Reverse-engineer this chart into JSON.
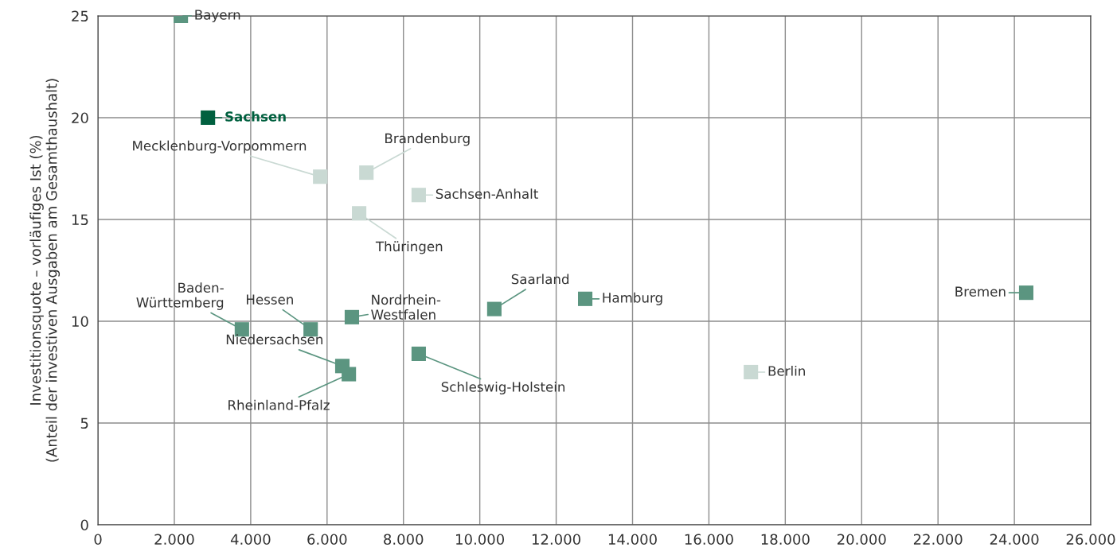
{
  "chart_data": {
    "type": "scatter",
    "ylabel": "Investitionsquote – vorläufiges Ist (%)\n(Anteil der investiven Ausgaben am Gesamthaushalt)",
    "x": [
      2170,
      2880,
      5820,
      7030,
      8400,
      6840,
      3770,
      5570,
      6650,
      6400,
      6570,
      8400,
      10380,
      12760,
      24310,
      17100
    ],
    "values": [
      25.0,
      20.0,
      17.1,
      17.3,
      16.2,
      15.3,
      9.6,
      9.6,
      10.2,
      7.8,
      7.4,
      8.4,
      10.6,
      11.1,
      11.4,
      7.5
    ],
    "colors": [
      "#5b9580",
      "#00603f",
      "#c9d9d3",
      "#c9d9d3",
      "#c9d9d3",
      "#c9d9d3",
      "#5b9580",
      "#5b9580",
      "#5b9580",
      "#5b9580",
      "#5b9580",
      "#5b9580",
      "#5b9580",
      "#5b9580",
      "#5b9580",
      "#c9d9d3"
    ],
    "marker": "square",
    "annotations": [
      {
        "text": "Bayern",
        "x": 2170,
        "y": 25.0
      },
      {
        "text": "Sachsen",
        "x": 2880,
        "y": 20.0
      },
      {
        "text": "Mecklenburg-Vorpommern",
        "x": 5820,
        "y": 17.1
      },
      {
        "text": "Brandenburg",
        "x": 7030,
        "y": 17.3
      },
      {
        "text": "Sachsen-Anhalt",
        "x": 8400,
        "y": 16.2
      },
      {
        "text": "Thüringen",
        "x": 6840,
        "y": 15.3
      },
      {
        "text": "Baden-\nWürttemberg",
        "x": 3770,
        "y": 9.6
      },
      {
        "text": "Hessen",
        "x": 5570,
        "y": 9.6
      },
      {
        "text": "Nordrhein-\nWestfalen",
        "x": 6650,
        "y": 10.2
      },
      {
        "text": "Niedersachsen",
        "x": 6400,
        "y": 7.8
      },
      {
        "text": "Rheinland-Pfalz",
        "x": 6570,
        "y": 7.4
      },
      {
        "text": "Schleswig-Holstein",
        "x": 8400,
        "y": 8.4
      },
      {
        "text": "Saarland",
        "x": 10380,
        "y": 10.6
      },
      {
        "text": "Hamburg",
        "x": 12760,
        "y": 11.1
      },
      {
        "text": "Bremen",
        "x": 24310,
        "y": 11.4
      },
      {
        "text": "Berlin",
        "x": 17100,
        "y": 7.5
      }
    ],
    "xlim": [
      0,
      26000
    ],
    "ylim": [
      0,
      25
    ],
    "xticks": [
      0,
      {
        "value": 2000,
        "label": "2.000"
      },
      {
        "value": 4000,
        "label": "4.000"
      },
      {
        "value": 6000,
        "label": "6.000"
      },
      {
        "value": 8000,
        "label": "8.000"
      },
      {
        "value": 10000,
        "label": "10.000"
      },
      {
        "value": 12000,
        "label": "12.000"
      },
      {
        "value": 14000,
        "label": "14.000"
      },
      {
        "value": 16000,
        "label": "16.000"
      },
      {
        "value": 18000,
        "label": "18.000"
      },
      {
        "value": 20000,
        "label": "20.000"
      },
      {
        "value": 22000,
        "label": "22.000"
      },
      {
        "value": 24000,
        "label": "24.000"
      },
      {
        "value": 26000,
        "label": "26.000"
      }
    ],
    "yticks": [
      0,
      5,
      10,
      15,
      20,
      25
    ],
    "grid": true
  }
}
